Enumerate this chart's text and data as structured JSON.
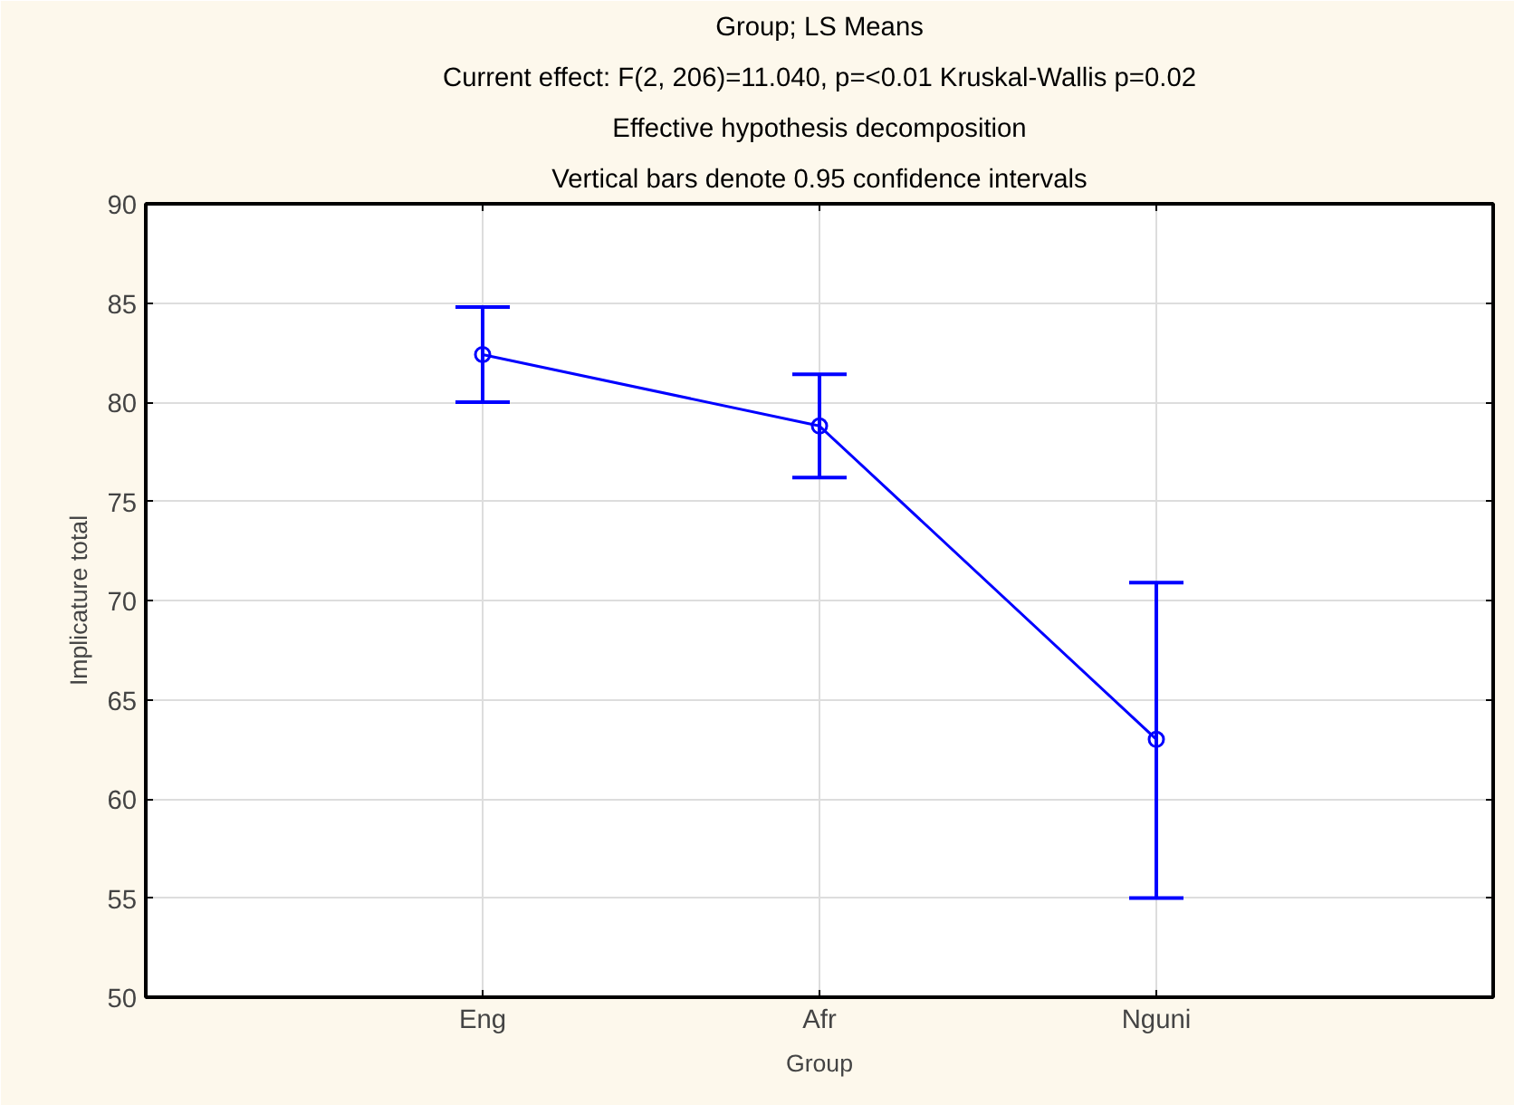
{
  "chart_data": {
    "type": "line",
    "title": "Group; LS Means",
    "subtitle": "Current effect: F(2, 206)=11.040, p=<0.01 Kruskal-Wallis p=0.02",
    "annotations": [
      "Effective hypothesis decomposition",
      "Vertical bars denote 0.95 confidence intervals"
    ],
    "xlabel": "Group",
    "ylabel": "Implicature total",
    "categories": [
      "Eng",
      "Afr",
      "Nguni"
    ],
    "series": [
      {
        "color": "#0000ff",
        "values": [
          82.4,
          78.8,
          63.0
        ],
        "errors": [
          [
            80.0,
            84.8
          ],
          [
            76.2,
            81.4
          ],
          [
            55.0,
            70.9
          ]
        ]
      }
    ],
    "ylim": [
      50,
      90
    ],
    "yticks": [
      50,
      55,
      60,
      65,
      70,
      75,
      80,
      85,
      90
    ],
    "grid": true,
    "marker": "circle",
    "line_style": "solid"
  }
}
